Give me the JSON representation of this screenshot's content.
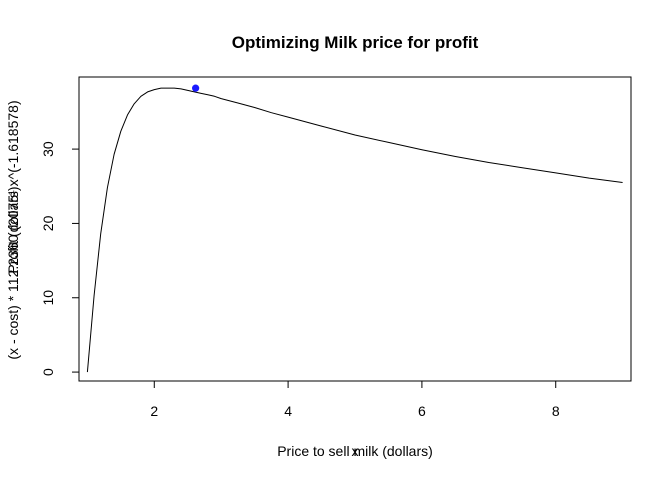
{
  "chart_data": {
    "type": "line",
    "title": "Optimizing Milk price for profit",
    "xlabel": "Price to sell milk (dollars)",
    "xlabel_overprint": "x",
    "ylabel": "(x - cost) * 112.2360 (2075¹ x^(-1.618578)",
    "ylabel_overprint": "Profit (dollars)",
    "xlim": [
      0.875,
      9.125
    ],
    "ylim": [
      -1.2,
      39.7
    ],
    "x_ticks": [
      2,
      4,
      6,
      8
    ],
    "y_ticks": [
      0,
      10,
      20,
      30
    ],
    "grid": false,
    "legend": "none",
    "series": [
      {
        "x": [
          1.0,
          1.1,
          1.2,
          1.3,
          1.4,
          1.5,
          1.6,
          1.7,
          1.8,
          1.9,
          2.0,
          2.1,
          2.2,
          2.3,
          2.4,
          2.5,
          2.6,
          2.7,
          2.8,
          2.9,
          3.0,
          3.25,
          3.5,
          3.75,
          4.0,
          4.5,
          5.0,
          5.5,
          6.0,
          6.5,
          7.0,
          7.5,
          8.0,
          8.5,
          9.0
        ],
        "values": [
          0.0,
          10.3,
          18.6,
          24.8,
          29.3,
          32.4,
          34.6,
          36.1,
          37.1,
          37.7,
          38.0,
          38.2,
          38.2,
          38.2,
          38.1,
          37.9,
          37.7,
          37.5,
          37.3,
          37.1,
          36.8,
          36.2,
          35.6,
          34.9,
          34.3,
          33.1,
          31.9,
          30.9,
          29.9,
          29.0,
          28.2,
          27.5,
          26.8,
          26.1,
          25.5
        ]
      }
    ],
    "highlight_point": {
      "x": 2.618,
      "y": 38.2
    },
    "colors": {
      "line": "#000000",
      "point": "#1a1aff",
      "frame": "#000000",
      "background": "#ffffff"
    }
  }
}
